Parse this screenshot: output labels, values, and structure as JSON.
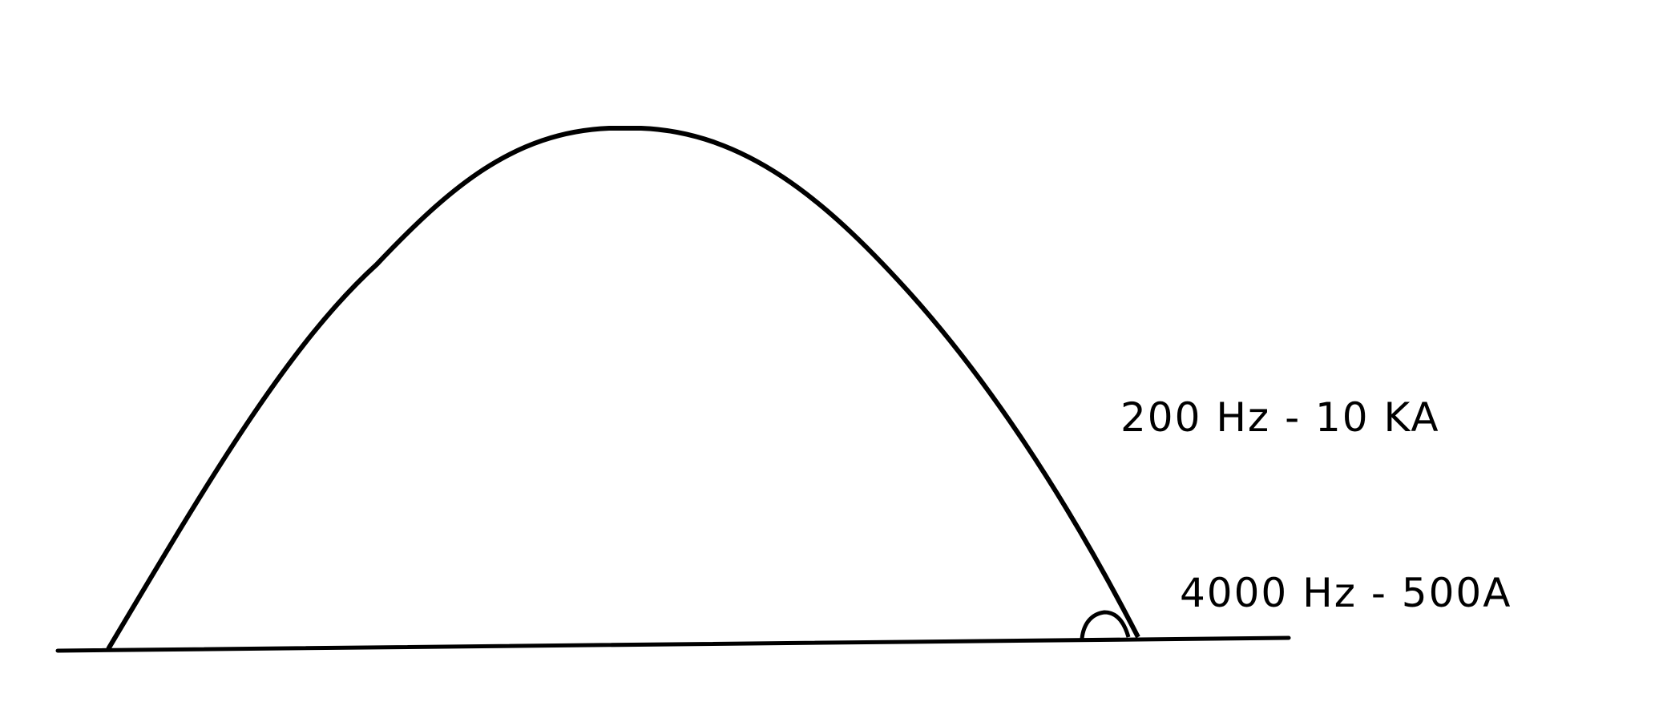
{
  "diagram": {
    "labels": {
      "large_pulse": "200 Hz - 10 KA",
      "small_pulse": "4000 Hz - 500A"
    },
    "colors": {
      "stroke": "#000000",
      "background": "#ffffff"
    }
  }
}
